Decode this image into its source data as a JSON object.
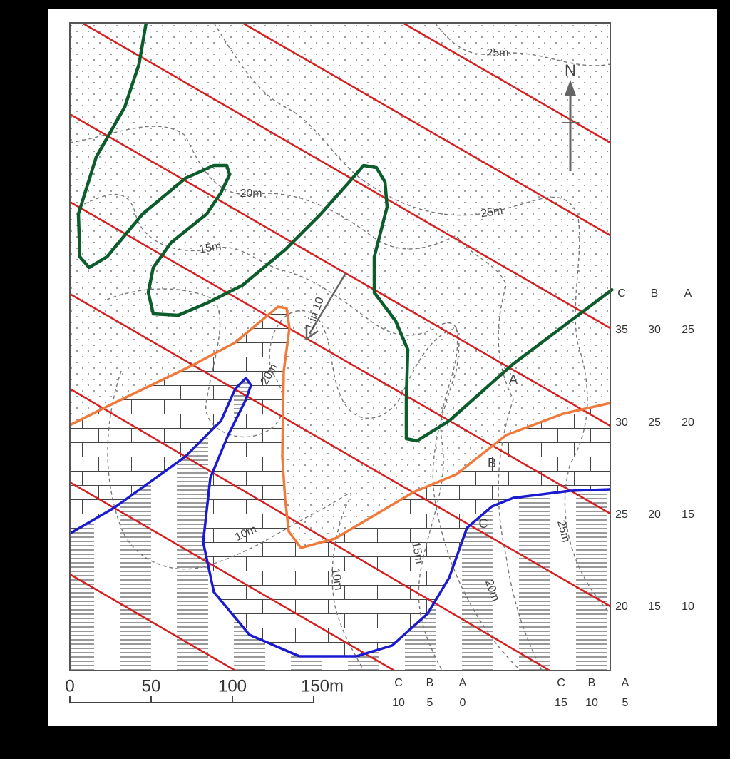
{
  "map": {
    "north": "N",
    "gradient_label": "1 in 10",
    "contour_labels": [
      "25m",
      "25m",
      "20m",
      "15m",
      "20m",
      "10m",
      "10m",
      "15m",
      "20m",
      "25m"
    ],
    "points": [
      "A",
      "B",
      "C"
    ],
    "right_key": {
      "header": [
        "C",
        "B",
        "A"
      ],
      "rows": [
        [
          35,
          30,
          25
        ],
        [
          30,
          25,
          20
        ],
        [
          25,
          20,
          15
        ],
        [
          20,
          15,
          10
        ]
      ]
    },
    "scale": {
      "ticks": [
        0,
        50,
        100,
        "150m"
      ]
    },
    "bottom_keys": [
      {
        "header": [
          "C",
          "B",
          "A"
        ],
        "values": [
          10,
          5,
          0
        ]
      },
      {
        "header": [
          "C",
          "B",
          "A"
        ],
        "values": [
          15,
          10,
          5
        ]
      }
    ]
  }
}
